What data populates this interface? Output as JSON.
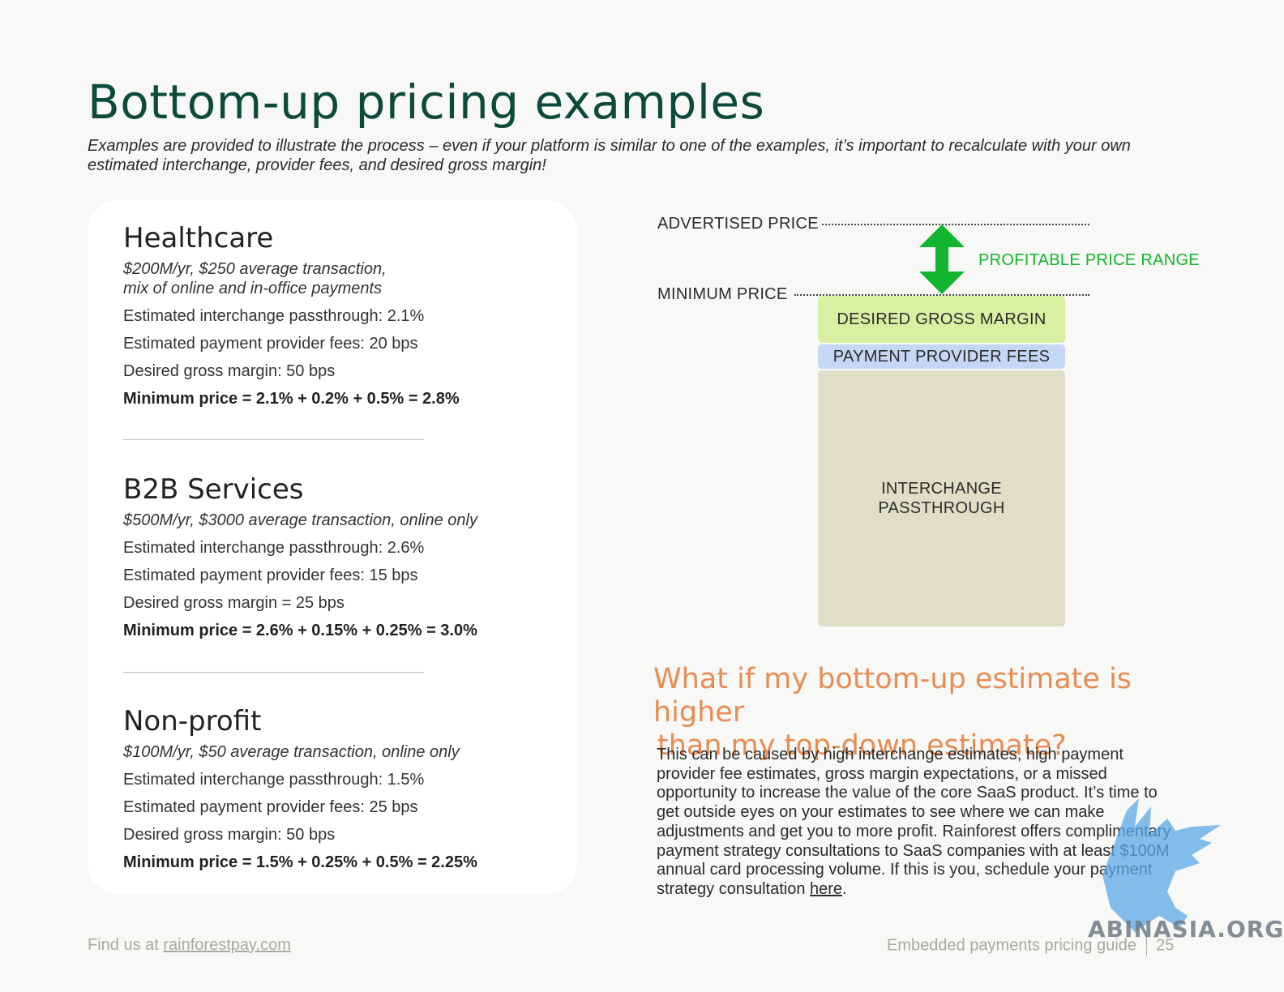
{
  "header": {
    "title": "Bottom-up pricing examples",
    "subtitle": "Examples are provided to illustrate the process – even if your platform is similar to one of the examples, it’s important to recalculate with your own estimated interchange, provider fees, and desired gross margin!"
  },
  "examples": [
    {
      "title": "Healthcare",
      "desc_lines": [
        "$200M/yr, $250 average transaction,",
        "mix of online and in-office payments"
      ],
      "interchange": "Estimated interchange passthrough: 2.1%",
      "provider_fees": "Estimated payment provider fees: 20 bps",
      "margin": "Desired gross margin: 50 bps",
      "minimum": "Minimum price = 2.1% + 0.2% + 0.5% = 2.8%"
    },
    {
      "title": "B2B Services",
      "desc_lines": [
        "$500M/yr, $3000 average transaction, online only"
      ],
      "interchange": "Estimated interchange passthrough: 2.6%",
      "provider_fees": "Estimated payment provider fees: 15 bps",
      "margin": "Desired gross margin = 25 bps",
      "minimum": "Minimum price = 2.6% + 0.15% + 0.25% = 3.0%"
    },
    {
      "title": "Non-profit",
      "desc_lines": [
        "$100M/yr, $50 average transaction, online only"
      ],
      "interchange": "Estimated interchange passthrough:  1.5%",
      "provider_fees": "Estimated payment provider fees: 25 bps",
      "margin": "Desired gross margin: 50 bps",
      "minimum": "Minimum price = 1.5% + 0.25% + 0.5% = 2.25%"
    }
  ],
  "diagram": {
    "advertised_price": "ADVERTISED PRICE",
    "minimum_price": "MINIMUM PRICE",
    "profitable_range": "PROFITABLE PRICE RANGE",
    "desired_margin": "DESIRED GROSS MARGIN",
    "provider_fees": "PAYMENT PROVIDER FEES",
    "interchange_line1": "INTERCHANGE",
    "interchange_line2": "PASSTHROUGH",
    "colors": {
      "margin": "#d9f0a3",
      "provider_fees": "#c6d6f5",
      "interchange": "#dfdfc8",
      "arrow": "#12b52e"
    }
  },
  "question": {
    "line1": "What if my bottom-up estimate is higher",
    "line2": "than my top-down estimate?",
    "body": "This can be caused by high interchange estimates, high payment provider fee estimates, gross margin expectations, or a missed opportunity to increase the value of the core SaaS product. It’s time to get outside eyes on your estimates to see where we can make adjustments and get you to more profit. Rainforest offers complimentary payment strategy consultations to SaaS companies with at least $100M annual card processing volume. If this is you, schedule your payment strategy consultation ",
    "link": "here",
    "end": "."
  },
  "footer": {
    "find_us": "Find us at ",
    "site": "rainforestpay.com",
    "guide": "Embedded payments pricing guide",
    "page": "25"
  },
  "watermark": {
    "text": "ABINASIA.ORG",
    "icon": "griffin-logo-icon"
  }
}
